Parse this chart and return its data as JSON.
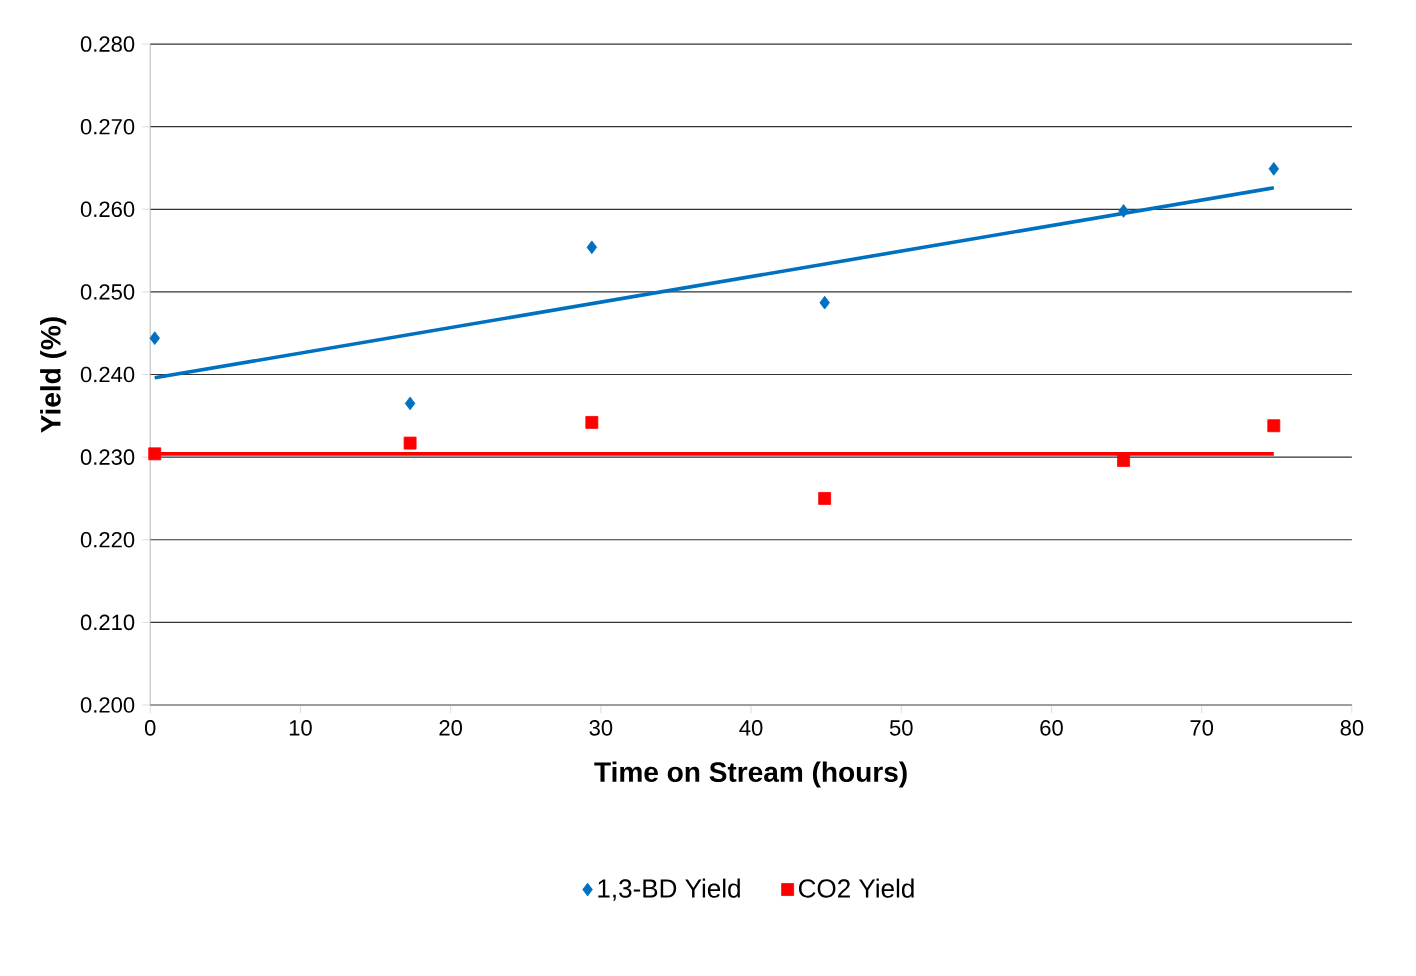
{
  "chart_data": {
    "type": "scatter",
    "xlabel": "Time on Stream (hours)",
    "ylabel": "Yield (%)",
    "xlim": [
      0,
      80
    ],
    "xticks": [
      0,
      10,
      20,
      30,
      40,
      50,
      60,
      70,
      80
    ],
    "ylim": [
      0.2,
      0.28
    ],
    "yticks": [
      {
        "value": 0.2,
        "label": "0.200"
      },
      {
        "value": 0.21,
        "label": "0.210"
      },
      {
        "value": 0.22,
        "label": "0.220"
      },
      {
        "value": 0.23,
        "label": "0.230"
      },
      {
        "value": 0.24,
        "label": "0.240"
      },
      {
        "value": 0.25,
        "label": "0.250"
      },
      {
        "value": 0.26,
        "label": "0.260"
      },
      {
        "value": 0.27,
        "label": "0.270"
      },
      {
        "value": 0.28,
        "label": "0.280"
      }
    ],
    "grid": "y",
    "legend": "bottom",
    "series": [
      {
        "name": "1,3-BD Yield",
        "color": "#0070c0",
        "marker": "diamond",
        "x": [
          0.3,
          17.3,
          29.4,
          44.9,
          64.8,
          74.8
        ],
        "values": [
          0.2444,
          0.2365,
          0.2554,
          0.2487,
          0.2598,
          0.2649
        ]
      },
      {
        "name": "CO2 Yield",
        "color": "#ff0000",
        "marker": "square",
        "x": [
          0.3,
          17.3,
          29.4,
          44.9,
          64.8,
          74.8
        ],
        "values": [
          0.2304,
          0.2317,
          0.2342,
          0.225,
          0.2296,
          0.2338
        ]
      },
      {
        "type": "line",
        "color": "#0070c0",
        "x": [
          0.3,
          74.8
        ],
        "values": [
          0.2396,
          0.2626
        ]
      },
      {
        "type": "line",
        "color": "#ff0000",
        "x": [
          0.3,
          74.8
        ],
        "values": [
          0.2304,
          0.2304
        ]
      }
    ]
  }
}
